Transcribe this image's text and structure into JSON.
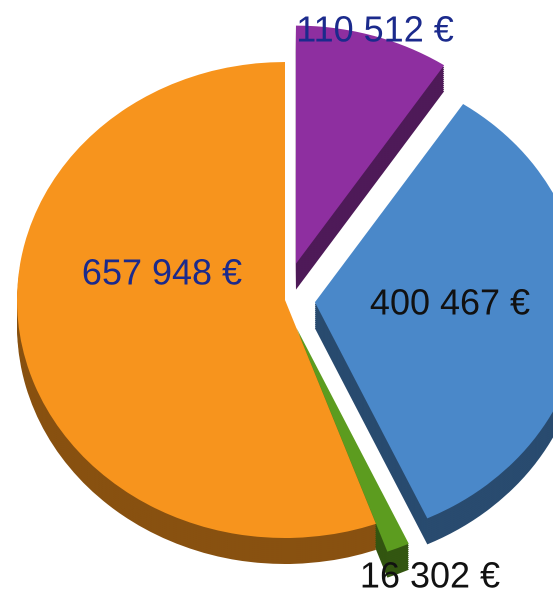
{
  "chart_data": {
    "type": "pie",
    "categories": [
      null,
      null,
      null,
      null
    ],
    "values": [
      110512,
      400467,
      16302,
      657948
    ],
    "value_labels": [
      "110 512 €",
      "400 467 €",
      "16 302 €",
      "657 948 €"
    ],
    "colors": [
      "#8e2fa0",
      "#4a88c9",
      "#5c9c1f",
      "#f7941d"
    ]
  }
}
